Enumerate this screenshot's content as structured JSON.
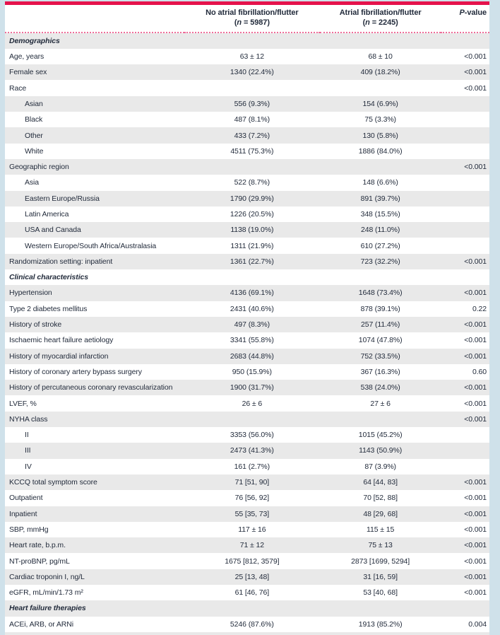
{
  "colors": {
    "page_background": "#cfe1ea",
    "table_background": "#ffffff",
    "accent_top_border": "#e5134c",
    "dotted_rule": "#ed6e99",
    "row_alternate": "#e9e9e9",
    "text": "#232c3c"
  },
  "table": {
    "header": {
      "no_af": {
        "title": "No atrial fibrillation/flutter",
        "paren_open": "(",
        "n_italic": "n",
        "n_rest": " = 5987)"
      },
      "af": {
        "title": "Atrial fibrillation/flutter",
        "paren_open": "(",
        "n_italic": "n",
        "n_rest": " = 2245)"
      },
      "p_italic": "P",
      "p_rest": "-value"
    },
    "rows": [
      {
        "label": "Demographics",
        "section": true
      },
      {
        "label": "Age, years",
        "c1": "63 ± 12",
        "c2": "68 ± 10",
        "p": "<0.001"
      },
      {
        "label": "Female sex",
        "c1": "1340 (22.4%)",
        "c2": "409 (18.2%)",
        "p": "<0.001"
      },
      {
        "label": "Race",
        "p": "<0.001"
      },
      {
        "label": "Asian",
        "indent": true,
        "c1": "556 (9.3%)",
        "c2": "154 (6.9%)"
      },
      {
        "label": "Black",
        "indent": true,
        "c1": "487 (8.1%)",
        "c2": "75 (3.3%)"
      },
      {
        "label": "Other",
        "indent": true,
        "c1": "433 (7.2%)",
        "c2": "130 (5.8%)"
      },
      {
        "label": "White",
        "indent": true,
        "c1": "4511 (75.3%)",
        "c2": "1886 (84.0%)"
      },
      {
        "label": "Geographic region",
        "p": "<0.001"
      },
      {
        "label": "Asia",
        "indent": true,
        "c1": "522 (8.7%)",
        "c2": "148 (6.6%)"
      },
      {
        "label": "Eastern Europe/Russia",
        "indent": true,
        "c1": "1790 (29.9%)",
        "c2": "891 (39.7%)"
      },
      {
        "label": "Latin America",
        "indent": true,
        "c1": "1226 (20.5%)",
        "c2": "348 (15.5%)"
      },
      {
        "label": "USA and Canada",
        "indent": true,
        "c1": "1138 (19.0%)",
        "c2": "248 (11.0%)"
      },
      {
        "label": "Western Europe/South Africa/Australasia",
        "indent": true,
        "c1": "1311 (21.9%)",
        "c2": "610 (27.2%)"
      },
      {
        "label": "Randomization setting: inpatient",
        "c1": "1361 (22.7%)",
        "c2": "723 (32.2%)",
        "p": "<0.001"
      },
      {
        "label": "Clinical characteristics",
        "section": true
      },
      {
        "label": "Hypertension",
        "c1": "4136 (69.1%)",
        "c2": "1648 (73.4%)",
        "p": "<0.001"
      },
      {
        "label": "Type 2 diabetes mellitus",
        "c1": "2431 (40.6%)",
        "c2": "878 (39.1%)",
        "p": "0.22"
      },
      {
        "label": "History of stroke",
        "c1": "497 (8.3%)",
        "c2": "257 (11.4%)",
        "p": "<0.001"
      },
      {
        "label": "Ischaemic heart failure aetiology",
        "c1": "3341 (55.8%)",
        "c2": "1074 (47.8%)",
        "p": "<0.001"
      },
      {
        "label": "History of myocardial infarction",
        "c1": "2683 (44.8%)",
        "c2": "752 (33.5%)",
        "p": "<0.001"
      },
      {
        "label": "History of coronary artery bypass surgery",
        "c1": "950 (15.9%)",
        "c2": "367 (16.3%)",
        "p": "0.60"
      },
      {
        "label": "History of percutaneous coronary revascularization",
        "c1": "1900 (31.7%)",
        "c2": "538 (24.0%)",
        "p": "<0.001"
      },
      {
        "label": "LVEF, %",
        "c1": "26 ± 6",
        "c2": "27 ± 6",
        "p": "<0.001"
      },
      {
        "label": "NYHA class",
        "p": "<0.001"
      },
      {
        "label": "II",
        "indent": true,
        "c1": "3353 (56.0%)",
        "c2": "1015 (45.2%)"
      },
      {
        "label": "III",
        "indent": true,
        "c1": "2473 (41.3%)",
        "c2": "1143 (50.9%)"
      },
      {
        "label": "IV",
        "indent": true,
        "c1": "161 (2.7%)",
        "c2": "87 (3.9%)"
      },
      {
        "label": "KCCQ total symptom score",
        "c1": "71 [51, 90]",
        "c2": "64 [44, 83]",
        "p": "<0.001"
      },
      {
        "label": "Outpatient",
        "c1": "76 [56, 92]",
        "c2": "70 [52, 88]",
        "p": "<0.001"
      },
      {
        "label": "Inpatient",
        "c1": "55 [35, 73]",
        "c2": "48 [29, 68]",
        "p": "<0.001"
      },
      {
        "label": "SBP, mmHg",
        "c1": "117 ± 16",
        "c2": "115 ± 15",
        "p": "<0.001"
      },
      {
        "label": "Heart rate, b.p.m.",
        "c1": "71 ± 12",
        "c2": "75 ± 13",
        "p": "<0.001"
      },
      {
        "label": "NT-proBNP, pg/mL",
        "c1": "1675 [812, 3579]",
        "c2": "2873 [1699, 5294]",
        "p": "<0.001"
      },
      {
        "label": "Cardiac troponin I, ng/L",
        "c1": "25 [13, 48]",
        "c2": "31 [16, 59]",
        "p": "<0.001"
      },
      {
        "label": "eGFR, mL/min/1.73 m²",
        "c1": "61 [46, 76]",
        "c2": "53 [40, 68]",
        "p": "<0.001"
      },
      {
        "label": "Heart failure therapies",
        "section": true
      },
      {
        "label": "ACEi, ARB, or ARNi",
        "c1": "5246 (87.6%)",
        "c2": "1913 (85.2%)",
        "p": "0.004"
      }
    ]
  }
}
